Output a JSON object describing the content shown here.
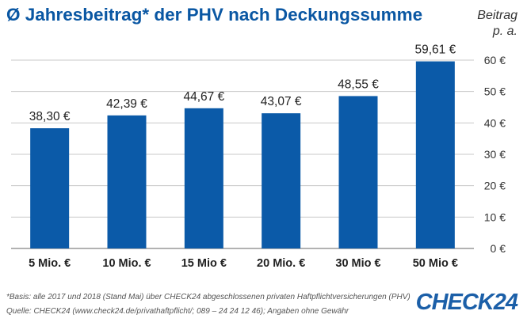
{
  "title": "Ø Jahresbeitrag* der PHV nach Deckungssumme",
  "chart_data": {
    "type": "bar",
    "categories": [
      "5 Mio. €",
      "10 Mio. €",
      "15 Mio €",
      "20 Mio. €",
      "30 Mio €",
      "50 Mio €"
    ],
    "values": [
      38.3,
      42.39,
      44.67,
      43.07,
      48.55,
      59.61
    ],
    "value_labels": [
      "38,30 €",
      "42,39 €",
      "44,67 €",
      "43,07 €",
      "48,55 €",
      "59,61 €"
    ],
    "ylabel": [
      "Beitrag",
      "p. a."
    ],
    "ylim": [
      0,
      60
    ],
    "yticks": [
      0,
      10,
      20,
      30,
      40,
      50,
      60
    ],
    "ytick_labels": [
      "0 €",
      "10 €",
      "20 €",
      "30 €",
      "40 €",
      "50 €",
      "60 €"
    ],
    "grid": true,
    "bar_color": "#0b5aa8",
    "grid_color": "#c8c8c8"
  },
  "footnote": {
    "line1": "*Basis: alle 2017 und 2018 (Stand Mai) über CHECK24 abgeschlossenen privaten Haftpflichtversicherungen (PHV)",
    "line2": "Quelle: CHECK24 (www.check24.de/privathaftpflicht/; 089 – 24 24 12 46); Angaben ohne Gewähr"
  },
  "logo": "CHECK24"
}
